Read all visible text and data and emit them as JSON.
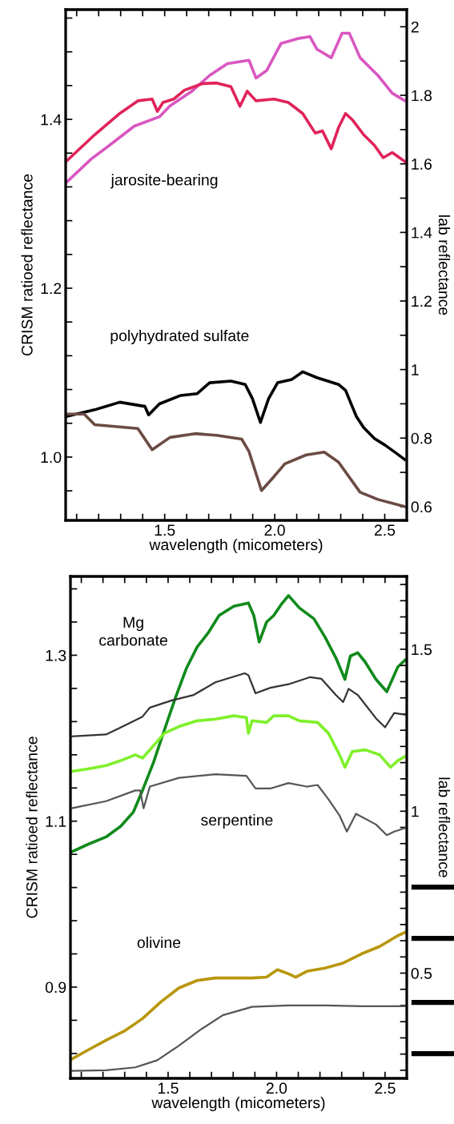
{
  "chart_data": [
    {
      "type": "line",
      "xlabel": "wavelength (micometers)",
      "ylabel": "CRISM ratioed reflectance",
      "y2label": "lab reflectance",
      "xlim": [
        1.05,
        2.6
      ],
      "ylim": [
        0.925,
        1.53
      ],
      "y2lim": [
        0.56,
        2.05
      ],
      "xticks": [
        {
          "value": 1.1,
          "label": null
        },
        {
          "value": 1.2,
          "label": null
        },
        {
          "value": 1.3,
          "label": null
        },
        {
          "value": 1.4,
          "label": null
        },
        {
          "value": 1.5,
          "label": "1.5"
        },
        {
          "value": 1.6,
          "label": null
        },
        {
          "value": 1.7,
          "label": null
        },
        {
          "value": 1.8,
          "label": null
        },
        {
          "value": 1.9,
          "label": null
        },
        {
          "value": 2,
          "label": "2.0"
        },
        {
          "value": 2.1,
          "label": null
        },
        {
          "value": 2.2,
          "label": null
        },
        {
          "value": 2.3,
          "label": null
        },
        {
          "value": 2.4,
          "label": null
        },
        {
          "value": 2.5,
          "label": "2.5"
        },
        {
          "value": 2.6,
          "label": null
        }
      ],
      "yticks": [
        {
          "value": 0.96,
          "label": null
        },
        {
          "value": 1,
          "label": "1.0"
        },
        {
          "value": 1.04,
          "label": null
        },
        {
          "value": 1.08,
          "label": null
        },
        {
          "value": 1.12,
          "label": null
        },
        {
          "value": 1.16,
          "label": null
        },
        {
          "value": 1.2,
          "label": "1.2"
        },
        {
          "value": 1.24,
          "label": null
        },
        {
          "value": 1.28,
          "label": null
        },
        {
          "value": 1.32,
          "label": null
        },
        {
          "value": 1.36,
          "label": null
        },
        {
          "value": 1.4,
          "label": "1.4"
        },
        {
          "value": 1.44,
          "label": null
        },
        {
          "value": 1.48,
          "label": null
        },
        {
          "value": 1.52,
          "label": null
        }
      ],
      "y2ticks": [
        0.6,
        {
          "value": 0.7,
          "label": null
        },
        0.8,
        {
          "value": 0.9,
          "label": null
        },
        1,
        {
          "value": 1.1,
          "label": null
        },
        1.2,
        {
          "value": 1.3,
          "label": null
        },
        1.4,
        {
          "value": 1.5,
          "label": null
        },
        1.6,
        {
          "value": 1.7,
          "label": null
        },
        1.8,
        {
          "value": 1.9,
          "label": null
        },
        2
      ],
      "annotations": [
        "jarosite-bearing",
        "polyhydrated sulfate"
      ],
      "series": [
        {
          "color": "#d957c0",
          "x": [
            1.052,
            1.166,
            1.248,
            1.362,
            1.476,
            1.524,
            1.622,
            1.704,
            1.785,
            1.883,
            1.915,
            1.964,
            2.029,
            2.111,
            2.16,
            2.192,
            2.257,
            2.306,
            2.339,
            2.388,
            2.469,
            2.534,
            2.591
          ],
          "values": [
            1.325,
            1.353,
            1.369,
            1.392,
            1.403,
            1.416,
            1.433,
            1.452,
            1.466,
            1.47,
            1.449,
            1.458,
            1.49,
            1.496,
            1.498,
            1.483,
            1.473,
            1.502,
            1.502,
            1.473,
            1.452,
            1.431,
            1.422
          ]
        },
        {
          "color": "#e0245a",
          "axis": "y2",
          "x": [
            1.052,
            1.182,
            1.296,
            1.378,
            1.443,
            1.467,
            1.492,
            1.541,
            1.59,
            1.671,
            1.736,
            1.801,
            1.842,
            1.875,
            1.915,
            1.997,
            2.062,
            2.127,
            2.184,
            2.217,
            2.257,
            2.29,
            2.322,
            2.355,
            2.404,
            2.453,
            2.493,
            2.534,
            2.591
          ],
          "values": [
            1.607,
            1.685,
            1.747,
            1.784,
            1.789,
            1.753,
            1.779,
            1.789,
            1.815,
            1.834,
            1.836,
            1.825,
            1.768,
            1.812,
            1.784,
            1.789,
            1.779,
            1.747,
            1.69,
            1.696,
            1.644,
            1.706,
            1.747,
            1.727,
            1.685,
            1.654,
            1.618,
            1.633,
            1.607
          ]
        },
        {
          "color": "#000000",
          "x": [
            1.052,
            1.182,
            1.296,
            1.41,
            1.427,
            1.476,
            1.573,
            1.647,
            1.704,
            1.801,
            1.866,
            1.899,
            1.935,
            1.972,
            2.013,
            2.078,
            2.127,
            2.192,
            2.29,
            2.322,
            2.371,
            2.404,
            2.453,
            2.502,
            2.55,
            2.591
          ],
          "values": [
            1.048,
            1.056,
            1.065,
            1.06,
            1.05,
            1.063,
            1.073,
            1.075,
            1.088,
            1.09,
            1.086,
            1.069,
            1.041,
            1.069,
            1.088,
            1.092,
            1.101,
            1.094,
            1.086,
            1.079,
            1.048,
            1.035,
            1.022,
            1.014,
            1.005,
            0.997
          ]
        },
        {
          "color": "#6b4b44",
          "axis": "y2",
          "x": [
            1.052,
            1.134,
            1.182,
            1.378,
            1.443,
            1.524,
            1.638,
            1.736,
            1.85,
            1.883,
            1.94,
            1.997,
            2.046,
            2.143,
            2.225,
            2.29,
            2.388,
            2.469,
            2.591
          ],
          "values": [
            0.87,
            0.87,
            0.839,
            0.828,
            0.766,
            0.802,
            0.813,
            0.808,
            0.797,
            0.761,
            0.647,
            0.688,
            0.725,
            0.751,
            0.759,
            0.73,
            0.642,
            0.621,
            0.6
          ]
        }
      ]
    },
    {
      "type": "line",
      "xlabel": "wavelength (micometers)",
      "ylabel": "CRISM ratioed reflectance",
      "y2label": "lab reflectance",
      "xlim": [
        1.05,
        2.6
      ],
      "ylim": [
        0.79,
        1.395
      ],
      "y2lim": [
        0.175,
        1.725
      ],
      "xticks": [
        {
          "value": 1.1,
          "label": null
        },
        {
          "value": 1.2,
          "label": null
        },
        {
          "value": 1.3,
          "label": null
        },
        {
          "value": 1.4,
          "label": null
        },
        {
          "value": 1.5,
          "label": "1.5"
        },
        {
          "value": 1.6,
          "label": null
        },
        {
          "value": 1.7,
          "label": null
        },
        {
          "value": 1.8,
          "label": null
        },
        {
          "value": 1.9,
          "label": null
        },
        {
          "value": 2,
          "label": "2.0"
        },
        {
          "value": 2.1,
          "label": null
        },
        {
          "value": 2.2,
          "label": null
        },
        {
          "value": 2.3,
          "label": null
        },
        {
          "value": 2.4,
          "label": null
        },
        {
          "value": 2.5,
          "label": "2.5"
        },
        {
          "value": 2.6,
          "label": null
        }
      ],
      "yticks": [
        {
          "value": 0.82,
          "label": null
        },
        {
          "value": 0.86,
          "label": null
        },
        0.9,
        {
          "value": 0.94,
          "label": null
        },
        {
          "value": 0.98,
          "label": null
        },
        {
          "value": 1.02,
          "label": null
        },
        {
          "value": 1.06,
          "label": null
        },
        1.1,
        {
          "value": 1.14,
          "label": null
        },
        {
          "value": 1.18,
          "label": null
        },
        {
          "value": 1.22,
          "label": null
        },
        {
          "value": 1.26,
          "label": null
        },
        1.3,
        {
          "value": 1.34,
          "label": null
        },
        {
          "value": 1.38,
          "label": null
        }
      ],
      "y2ticks": [
        {
          "value": 0.2,
          "label": null
        },
        {
          "value": 0.25,
          "label": null
        },
        {
          "value": 0.3,
          "label": null
        },
        {
          "value": 0.35,
          "label": null
        },
        {
          "value": 0.4,
          "label": null
        },
        {
          "value": 0.45,
          "label": null
        },
        0.5,
        {
          "value": 0.55,
          "label": null
        },
        {
          "value": 0.6,
          "label": null
        },
        {
          "value": 0.65,
          "label": null
        },
        {
          "value": 0.7,
          "label": null
        },
        {
          "value": 0.75,
          "label": null
        },
        {
          "value": 0.8,
          "label": null
        },
        {
          "value": 0.85,
          "label": null
        },
        {
          "value": 0.9,
          "label": null
        },
        {
          "value": 0.95,
          "label": null
        },
        1,
        {
          "value": 1.05,
          "label": null
        },
        {
          "value": 1.1,
          "label": null
        },
        {
          "value": 1.15,
          "label": null
        },
        {
          "value": 1.2,
          "label": null
        },
        {
          "value": 1.25,
          "label": null
        },
        {
          "value": 1.3,
          "label": null
        },
        {
          "value": 1.35,
          "label": null
        },
        {
          "value": 1.4,
          "label": null
        },
        {
          "value": 1.45,
          "label": null
        },
        1.5,
        {
          "value": 1.55,
          "label": null
        },
        {
          "value": 1.6,
          "label": null
        },
        {
          "value": 1.65,
          "label": null
        },
        {
          "value": 1.7,
          "label": null
        }
      ],
      "annotations": [
        "Mg\ncarbonate",
        "serpentine",
        "olivine"
      ],
      "series": [
        {
          "color": "#118a1c",
          "x": [
            1.055,
            1.13,
            1.214,
            1.282,
            1.34,
            1.382,
            1.433,
            1.483,
            1.534,
            1.584,
            1.634,
            1.685,
            1.735,
            1.803,
            1.87,
            1.895,
            1.92,
            1.954,
            1.987,
            2.021,
            2.055,
            2.105,
            2.172,
            2.223,
            2.273,
            2.315,
            2.34,
            2.374,
            2.408,
            2.458,
            2.508,
            2.559,
            2.592
          ],
          "values": [
            1.063,
            1.072,
            1.081,
            1.094,
            1.111,
            1.137,
            1.171,
            1.21,
            1.249,
            1.284,
            1.31,
            1.327,
            1.348,
            1.359,
            1.363,
            1.348,
            1.316,
            1.34,
            1.348,
            1.361,
            1.372,
            1.357,
            1.344,
            1.322,
            1.297,
            1.271,
            1.299,
            1.303,
            1.292,
            1.271,
            1.256,
            1.286,
            1.294
          ]
        },
        {
          "color": "#333333",
          "axis": "y2",
          "x": [
            1.055,
            1.214,
            1.298,
            1.382,
            1.416,
            1.517,
            1.618,
            1.718,
            1.853,
            1.87,
            1.903,
            1.971,
            2.055,
            2.155,
            2.206,
            2.273,
            2.307,
            2.332,
            2.374,
            2.458,
            2.5,
            2.542,
            2.592
          ],
          "values": [
            1.231,
            1.237,
            1.264,
            1.292,
            1.32,
            1.342,
            1.359,
            1.398,
            1.426,
            1.42,
            1.364,
            1.381,
            1.392,
            1.414,
            1.409,
            1.359,
            1.337,
            1.378,
            1.359,
            1.287,
            1.259,
            1.303,
            1.298
          ]
        },
        {
          "color": "#7ef02a",
          "x": [
            1.055,
            1.13,
            1.214,
            1.282,
            1.349,
            1.382,
            1.416,
            1.483,
            1.55,
            1.634,
            1.718,
            1.803,
            1.861,
            1.87,
            1.887,
            1.954,
            1.987,
            2.055,
            2.105,
            2.189,
            2.239,
            2.29,
            2.315,
            2.349,
            2.408,
            2.475,
            2.525,
            2.559,
            2.592
          ],
          "values": [
            1.16,
            1.163,
            1.167,
            1.173,
            1.18,
            1.176,
            1.186,
            1.206,
            1.214,
            1.221,
            1.223,
            1.227,
            1.225,
            1.206,
            1.221,
            1.219,
            1.227,
            1.227,
            1.221,
            1.219,
            1.206,
            1.18,
            1.165,
            1.184,
            1.186,
            1.18,
            1.165,
            1.173,
            1.178
          ]
        },
        {
          "color": "#555555",
          "axis": "y2",
          "x": [
            1.055,
            1.214,
            1.349,
            1.371,
            1.387,
            1.416,
            1.55,
            1.718,
            1.861,
            1.903,
            1.971,
            2.055,
            2.139,
            2.189,
            2.239,
            2.29,
            2.324,
            2.366,
            2.458,
            2.508,
            2.542,
            2.592
          ],
          "values": [
            1.009,
            1.031,
            1.064,
            1.064,
            1.009,
            1.076,
            1.103,
            1.114,
            1.109,
            1.07,
            1.07,
            1.087,
            1.076,
            1.081,
            1.037,
            0.987,
            0.937,
            0.992,
            0.959,
            0.926,
            0.937,
            0.948
          ]
        },
        {
          "color": "#b8960c",
          "x": [
            1.055,
            1.13,
            1.214,
            1.298,
            1.382,
            1.466,
            1.55,
            1.634,
            1.718,
            1.887,
            1.954,
            2.004,
            2.055,
            2.088,
            2.139,
            2.223,
            2.307,
            2.391,
            2.475,
            2.559,
            2.592
          ],
          "values": [
            0.813,
            0.824,
            0.836,
            0.847,
            0.862,
            0.882,
            0.899,
            0.908,
            0.911,
            0.911,
            0.912,
            0.921,
            0.916,
            0.912,
            0.919,
            0.923,
            0.929,
            0.94,
            0.949,
            0.962,
            0.966
          ]
        },
        {
          "color": "#555555",
          "axis": "y2",
          "x": [
            1.055,
            1.214,
            1.349,
            1.45,
            1.55,
            1.651,
            1.752,
            1.887,
            2.055,
            2.223,
            2.391,
            2.592
          ],
          "values": [
            0.198,
            0.2,
            0.209,
            0.231,
            0.276,
            0.326,
            0.37,
            0.396,
            0.4,
            0.4,
            0.398,
            0.398
          ]
        }
      ]
    }
  ]
}
